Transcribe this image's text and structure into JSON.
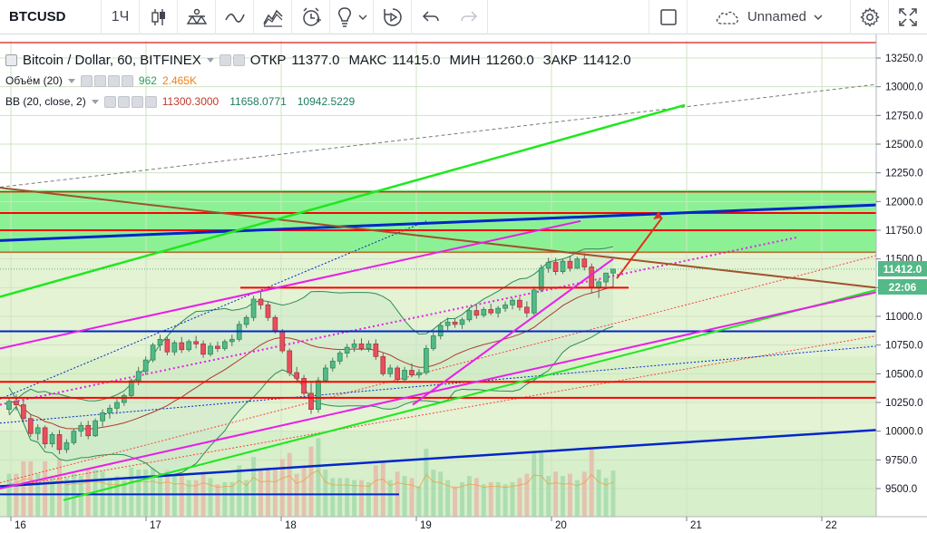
{
  "toolbar": {
    "symbol": "BTCUSD",
    "interval": "1Ч",
    "layout_name": "Unnamed"
  },
  "legend": {
    "title": "Bitcoin / Dollar, 60, BITFINEX",
    "open_label": "ОТКР",
    "open": "11377.0",
    "high_label": "МАКС",
    "high": "11415.0",
    "low_label": "МИН",
    "low": "11260.0",
    "close_label": "ЗАКР",
    "close": "11412.0",
    "volume_label": "Объём (20)",
    "volume_value": "962",
    "volume_ma": "2.465K",
    "bb_label": "BB (20, close, 2)",
    "bb_basis": "11300.3000",
    "bb_upper": "11658.0771",
    "bb_lower": "10942.5229"
  },
  "price_axis": {
    "ticks": [
      "13250.0",
      "13000.0",
      "12750.0",
      "12500.0",
      "12250.0",
      "12000.0",
      "11750.0",
      "11500.0",
      "11250.0",
      "11000.0",
      "10750.0",
      "10500.0",
      "10250.0",
      "10000.0",
      "9750.0",
      "9500.0"
    ],
    "last_price": "11412.0",
    "countdown": "22:06"
  },
  "time_axis": {
    "ticks": [
      "16",
      "17",
      "18",
      "19",
      "20",
      "21",
      "22"
    ]
  },
  "colors": {
    "bull": "#53b987",
    "bear": "#eb4d5c",
    "zone": "#7cf08a",
    "bg_band": "#e4f3d4",
    "red_line": "#ff0000",
    "blue_line": "#0026c9",
    "green_line": "#1ee81e",
    "magenta_line": "#e91ee9",
    "brown_line": "#a0522d"
  },
  "chart_data": {
    "type": "candlestick",
    "symbol": "Bitcoin / Dollar",
    "timeframe": "60",
    "exchange": "BITFINEX",
    "ylim": [
      9400,
      13350
    ],
    "y_ticks": [
      9500,
      9750,
      10000,
      10250,
      10500,
      10750,
      11000,
      11250,
      11500,
      11750,
      12000,
      12250,
      12500,
      12750,
      13000,
      13250
    ],
    "x_ticks": [
      "16",
      "17",
      "18",
      "19",
      "20",
      "21",
      "22"
    ],
    "ohlc_series": [
      [
        10190,
        10290,
        10150,
        10260
      ],
      [
        10260,
        10320,
        10180,
        10230
      ],
      [
        10230,
        10280,
        10080,
        10110
      ],
      [
        10110,
        10150,
        9950,
        9980
      ],
      [
        9980,
        10060,
        9920,
        10030
      ],
      [
        10030,
        10050,
        9850,
        9890
      ],
      [
        9890,
        9990,
        9860,
        9970
      ],
      [
        9970,
        10010,
        9800,
        9840
      ],
      [
        9840,
        9930,
        9810,
        9900
      ],
      [
        9900,
        10020,
        9880,
        10000
      ],
      [
        10000,
        10080,
        9950,
        10050
      ],
      [
        10050,
        10090,
        9930,
        9960
      ],
      [
        9960,
        10110,
        9950,
        10090
      ],
      [
        10090,
        10190,
        10040,
        10160
      ],
      [
        10160,
        10230,
        10110,
        10200
      ],
      [
        10200,
        10280,
        10150,
        10250
      ],
      [
        10250,
        10330,
        10220,
        10310
      ],
      [
        10310,
        10460,
        10290,
        10440
      ],
      [
        10440,
        10560,
        10400,
        10520
      ],
      [
        10520,
        10650,
        10490,
        10620
      ],
      [
        10620,
        10770,
        10600,
        10750
      ],
      [
        10750,
        10840,
        10700,
        10800
      ],
      [
        10800,
        10820,
        10660,
        10690
      ],
      [
        10690,
        10790,
        10660,
        10770
      ],
      [
        10770,
        10820,
        10680,
        10710
      ],
      [
        10710,
        10800,
        10690,
        10780
      ],
      [
        10780,
        10830,
        10720,
        10760
      ],
      [
        10760,
        10790,
        10640,
        10670
      ],
      [
        10670,
        10770,
        10650,
        10740
      ],
      [
        10740,
        10780,
        10690,
        10720
      ],
      [
        10720,
        10800,
        10700,
        10780
      ],
      [
        10780,
        10840,
        10740,
        10800
      ],
      [
        10800,
        10960,
        10780,
        10930
      ],
      [
        10930,
        11010,
        10900,
        10990
      ],
      [
        10990,
        11180,
        10960,
        11150
      ],
      [
        11150,
        11220,
        11060,
        11100
      ],
      [
        11100,
        11130,
        10960,
        10990
      ],
      [
        10990,
        11010,
        10850,
        10870
      ],
      [
        10870,
        10890,
        10680,
        10700
      ],
      [
        10700,
        10720,
        10480,
        10510
      ],
      [
        10510,
        10560,
        10420,
        10460
      ],
      [
        10460,
        10490,
        10310,
        10330
      ],
      [
        10330,
        10420,
        10150,
        10190
      ],
      [
        10190,
        10470,
        10160,
        10440
      ],
      [
        10440,
        10580,
        10420,
        10550
      ],
      [
        10550,
        10640,
        10520,
        10610
      ],
      [
        10610,
        10700,
        10580,
        10680
      ],
      [
        10680,
        10760,
        10640,
        10730
      ],
      [
        10730,
        10800,
        10690,
        10760
      ],
      [
        10760,
        10810,
        10700,
        10720
      ],
      [
        10720,
        10790,
        10690,
        10760
      ],
      [
        10760,
        10800,
        10620,
        10650
      ],
      [
        10650,
        10680,
        10480,
        10500
      ],
      [
        10500,
        10580,
        10470,
        10550
      ],
      [
        10550,
        10570,
        10420,
        10450
      ],
      [
        10450,
        10560,
        10430,
        10530
      ],
      [
        10530,
        10590,
        10470,
        10490
      ],
      [
        10490,
        10540,
        10460,
        10510
      ],
      [
        10510,
        10750,
        10490,
        10720
      ],
      [
        10720,
        10860,
        10700,
        10830
      ],
      [
        10830,
        10950,
        10800,
        10920
      ],
      [
        10920,
        10990,
        10880,
        10950
      ],
      [
        10950,
        10980,
        10900,
        10930
      ],
      [
        10930,
        10990,
        10890,
        10970
      ],
      [
        10970,
        11080,
        10950,
        11050
      ],
      [
        11050,
        11100,
        10980,
        11010
      ],
      [
        11010,
        11080,
        10990,
        11060
      ],
      [
        11060,
        11110,
        11010,
        11030
      ],
      [
        11030,
        11090,
        10990,
        11070
      ],
      [
        11070,
        11130,
        11040,
        11100
      ],
      [
        11100,
        11160,
        11060,
        11140
      ],
      [
        11140,
        11170,
        11050,
        11080
      ],
      [
        11080,
        11130,
        10990,
        11030
      ],
      [
        11030,
        11260,
        11010,
        11230
      ],
      [
        11230,
        11450,
        11210,
        11420
      ],
      [
        11420,
        11510,
        11380,
        11470
      ],
      [
        11470,
        11510,
        11360,
        11390
      ],
      [
        11390,
        11500,
        11370,
        11480
      ],
      [
        11480,
        11530,
        11390,
        11420
      ],
      [
        11420,
        11520,
        11410,
        11500
      ],
      [
        11500,
        11550,
        11400,
        11430
      ],
      [
        11430,
        11460,
        11200,
        11250
      ],
      [
        11250,
        11320,
        11160,
        11300
      ],
      [
        11300,
        11380,
        11260,
        11377
      ],
      [
        11377,
        11415,
        11260,
        11412
      ]
    ],
    "bollinger": {
      "length": 20,
      "source": "close",
      "mult": 2,
      "basis": 11300.3,
      "upper": 11658.0771,
      "lower": 10942.5229
    },
    "volume": {
      "length": 20,
      "last": 962,
      "ma": 2465
    },
    "levels": {
      "horizontal_red": [
        12085,
        11900,
        11750,
        11250,
        10430,
        10290
      ],
      "horizontal_blue": [
        10870
      ],
      "zone": [
        11550,
        12100
      ]
    }
  }
}
